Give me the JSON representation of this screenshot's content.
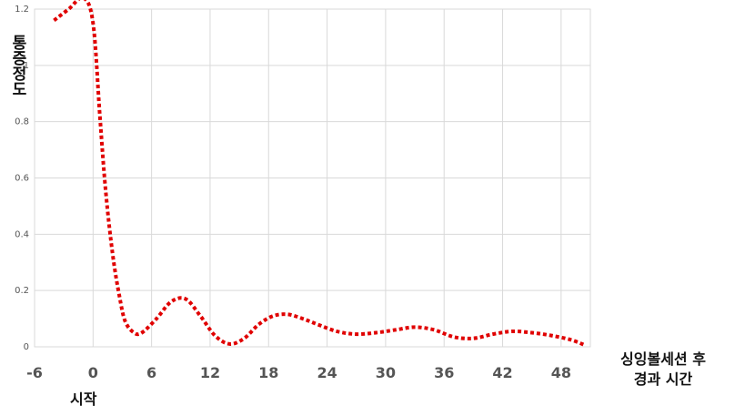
{
  "chart_data": {
    "type": "line",
    "title": "",
    "xlabel": "싱잉볼세션 후\n경과 시간",
    "ylabel": "통증정도",
    "x_annotation": "시작",
    "x_ticks": [
      -6,
      0,
      6,
      12,
      18,
      24,
      30,
      36,
      42,
      48
    ],
    "y_ticks": [
      "0",
      "0.2",
      "0.4",
      "0.6",
      "0.8",
      "1",
      "1.2"
    ],
    "xlim": [
      -6,
      51
    ],
    "ylim": [
      0,
      1.2
    ],
    "grid": true,
    "legend": "none",
    "line_color": "#e00000",
    "line_style": "dotted",
    "series": [
      {
        "x": [
          -4,
          -2.5,
          -1,
          0,
          0.7,
          1.3,
          2,
          2.7,
          3.3,
          4.2,
          5,
          6.5,
          8,
          9.5,
          11,
          12.5,
          14,
          15.5,
          17,
          18.5,
          20,
          21.5,
          23,
          25,
          27,
          29,
          31,
          33,
          35,
          37,
          39,
          41,
          43,
          45,
          47,
          49,
          50.5
        ],
        "y": [
          1.16,
          1.2,
          1.24,
          1.15,
          0.82,
          0.55,
          0.33,
          0.18,
          0.09,
          0.05,
          0.05,
          0.1,
          0.16,
          0.17,
          0.11,
          0.04,
          0.01,
          0.03,
          0.08,
          0.11,
          0.115,
          0.1,
          0.08,
          0.055,
          0.045,
          0.05,
          0.06,
          0.07,
          0.06,
          0.035,
          0.03,
          0.045,
          0.055,
          0.05,
          0.04,
          0.025,
          0.005
        ]
      }
    ]
  }
}
